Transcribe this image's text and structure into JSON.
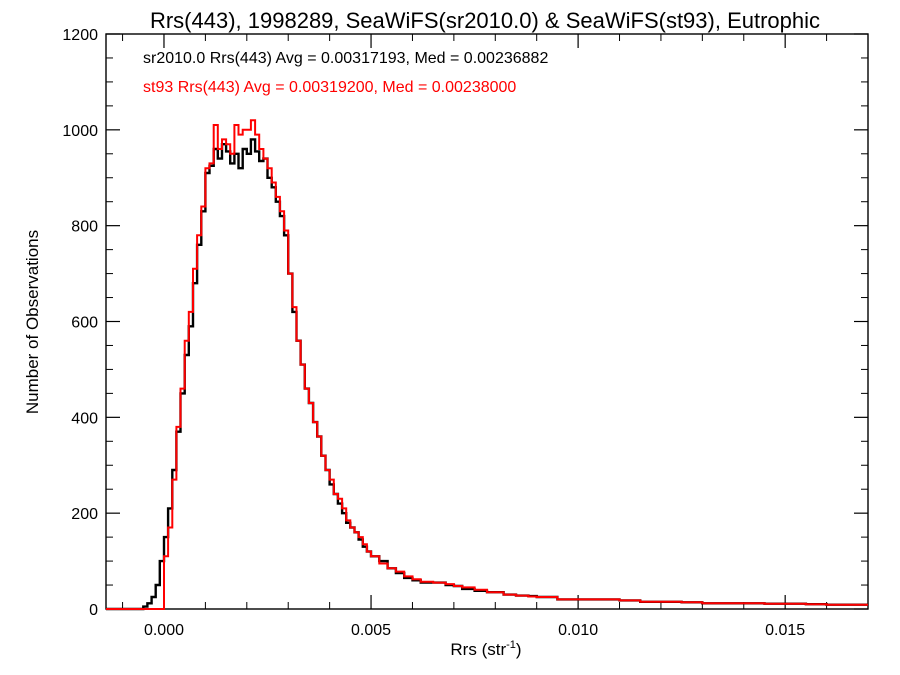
{
  "chart_data": {
    "type": "step-histogram",
    "title": "Rrs(443), 1998289, SeaWiFS(sr2010.0) & SeaWiFS(st93), Eutrophic",
    "xlabel": "Rrs (str",
    "xlabel_sup": "-1",
    "xlabel_end": ")",
    "ylabel": "Number of Observations",
    "xlim": [
      -0.0014,
      0.017
    ],
    "ylim": [
      0,
      1200
    ],
    "x_ticks": [
      0.0,
      0.005,
      0.01,
      0.015
    ],
    "x_tick_labels": [
      "0.000",
      "0.005",
      "0.010",
      "0.015"
    ],
    "y_ticks": [
      0,
      200,
      400,
      600,
      800,
      1000,
      1200
    ],
    "y_tick_labels": [
      "0",
      "200",
      "400",
      "600",
      "800",
      "1000",
      "1200"
    ],
    "grid": false,
    "legend_position": "top-left",
    "series": [
      {
        "name": "sr2010.0",
        "color": "#000000",
        "legend_text": "sr2010.0 Rrs(443) Avg = 0.00317193, Med = 0.00236882",
        "x": [
          -0.0014,
          -0.0005,
          -0.0004,
          -0.0003,
          -0.0002,
          -0.0001,
          0.0,
          0.0001,
          0.0002,
          0.0003,
          0.0004,
          0.0005,
          0.0006,
          0.0007,
          0.0008,
          0.0009,
          0.001,
          0.0011,
          0.0012,
          0.0013,
          0.0014,
          0.0015,
          0.0016,
          0.0017,
          0.0018,
          0.0019,
          0.002,
          0.0021,
          0.0022,
          0.0023,
          0.0024,
          0.0025,
          0.0026,
          0.0027,
          0.0028,
          0.0029,
          0.003,
          0.0031,
          0.0032,
          0.0033,
          0.0034,
          0.0035,
          0.0036,
          0.0037,
          0.0038,
          0.0039,
          0.004,
          0.0041,
          0.0042,
          0.0043,
          0.0044,
          0.0045,
          0.0046,
          0.0047,
          0.0048,
          0.0049,
          0.005,
          0.0052,
          0.0054,
          0.0056,
          0.0058,
          0.006,
          0.0062,
          0.0065,
          0.0068,
          0.007,
          0.0072,
          0.0075,
          0.0078,
          0.008,
          0.0082,
          0.0085,
          0.0088,
          0.009,
          0.0095,
          0.01,
          0.0105,
          0.011,
          0.0115,
          0.012,
          0.0125,
          0.013,
          0.0135,
          0.014,
          0.0145,
          0.015,
          0.0155,
          0.016,
          0.0165,
          0.017
        ],
        "values": [
          0,
          5,
          12,
          25,
          50,
          100,
          150,
          210,
          290,
          370,
          450,
          530,
          590,
          680,
          760,
          830,
          910,
          925,
          960,
          940,
          970,
          955,
          930,
          950,
          920,
          960,
          950,
          980,
          955,
          935,
          940,
          900,
          880,
          850,
          820,
          780,
          700,
          620,
          560,
          510,
          460,
          430,
          390,
          360,
          320,
          290,
          260,
          240,
          220,
          200,
          180,
          170,
          160,
          145,
          130,
          120,
          110,
          100,
          85,
          75,
          65,
          60,
          55,
          55,
          50,
          48,
          42,
          38,
          35,
          35,
          30,
          28,
          27,
          25,
          20,
          20,
          20,
          18,
          15,
          15,
          14,
          12,
          12,
          12,
          11,
          11,
          10,
          9,
          9,
          9
        ]
      },
      {
        "name": "st93",
        "color": "#ff0000",
        "legend_text": "st93 Rrs(443) Avg = 0.00319200, Med = 0.00238000",
        "x": [
          -0.0014,
          -0.0001,
          0.0,
          0.0001,
          0.0002,
          0.0003,
          0.0004,
          0.0005,
          0.0006,
          0.0007,
          0.0008,
          0.0009,
          0.001,
          0.0011,
          0.0012,
          0.0013,
          0.0014,
          0.0015,
          0.0016,
          0.0017,
          0.0018,
          0.0019,
          0.002,
          0.0021,
          0.0022,
          0.0023,
          0.0024,
          0.0025,
          0.0026,
          0.0027,
          0.0028,
          0.0029,
          0.003,
          0.0031,
          0.0032,
          0.0033,
          0.0034,
          0.0035,
          0.0036,
          0.0037,
          0.0038,
          0.0039,
          0.004,
          0.0041,
          0.0042,
          0.0043,
          0.0044,
          0.0045,
          0.0046,
          0.0047,
          0.0048,
          0.0049,
          0.005,
          0.0052,
          0.0054,
          0.0056,
          0.0058,
          0.006,
          0.0062,
          0.0065,
          0.0068,
          0.007,
          0.0072,
          0.0075,
          0.0078,
          0.008,
          0.0082,
          0.0085,
          0.0088,
          0.009,
          0.0095,
          0.01,
          0.0105,
          0.011,
          0.0115,
          0.012,
          0.0125,
          0.013,
          0.0135,
          0.014,
          0.0145,
          0.015,
          0.0155,
          0.016,
          0.0165,
          0.017
        ],
        "values": [
          0,
          0,
          110,
          170,
          270,
          380,
          460,
          560,
          620,
          710,
          780,
          840,
          920,
          930,
          1010,
          960,
          980,
          970,
          950,
          1010,
          990,
          1000,
          1000,
          1020,
          990,
          960,
          940,
          920,
          890,
          860,
          830,
          790,
          700,
          630,
          560,
          510,
          460,
          430,
          390,
          360,
          320,
          290,
          270,
          240,
          230,
          210,
          185,
          170,
          160,
          150,
          135,
          120,
          110,
          95,
          85,
          78,
          68,
          62,
          57,
          55,
          52,
          48,
          45,
          40,
          35,
          35,
          30,
          28,
          26,
          25,
          20,
          20,
          20,
          18,
          15,
          15,
          14,
          12,
          12,
          12,
          11,
          11,
          10,
          9,
          9,
          9
        ]
      }
    ]
  }
}
